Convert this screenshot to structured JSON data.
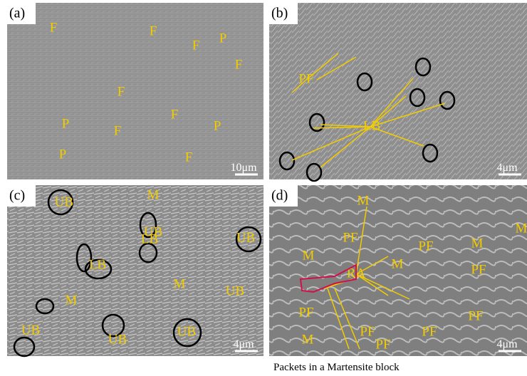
{
  "panels": [
    {
      "label": "(a)",
      "annotations": [
        "F",
        "F",
        "F",
        "P",
        "F",
        "F",
        "P",
        "F",
        "F",
        "P",
        "P",
        "F"
      ],
      "scale_bar": "10μm"
    },
    {
      "label": "(b)",
      "annotations": [
        "PF",
        "LB"
      ],
      "scale_bar": "4μm"
    },
    {
      "label": "(c)",
      "annotations": [
        "UB",
        "M",
        "UB",
        "UB",
        "LB",
        "LB",
        "M",
        "UB",
        "M",
        "UB",
        "UB",
        "UB"
      ],
      "scale_bar": "4μm"
    },
    {
      "label": "(d)",
      "annotations": [
        "M",
        "M",
        "PF",
        "PF",
        "M",
        "M",
        "M",
        "PF",
        "RA",
        "PF",
        "PF",
        "PF",
        "PF",
        "M",
        "PF"
      ],
      "scale_bar": "4μm"
    }
  ],
  "caption": "Packets in a Martensite block"
}
